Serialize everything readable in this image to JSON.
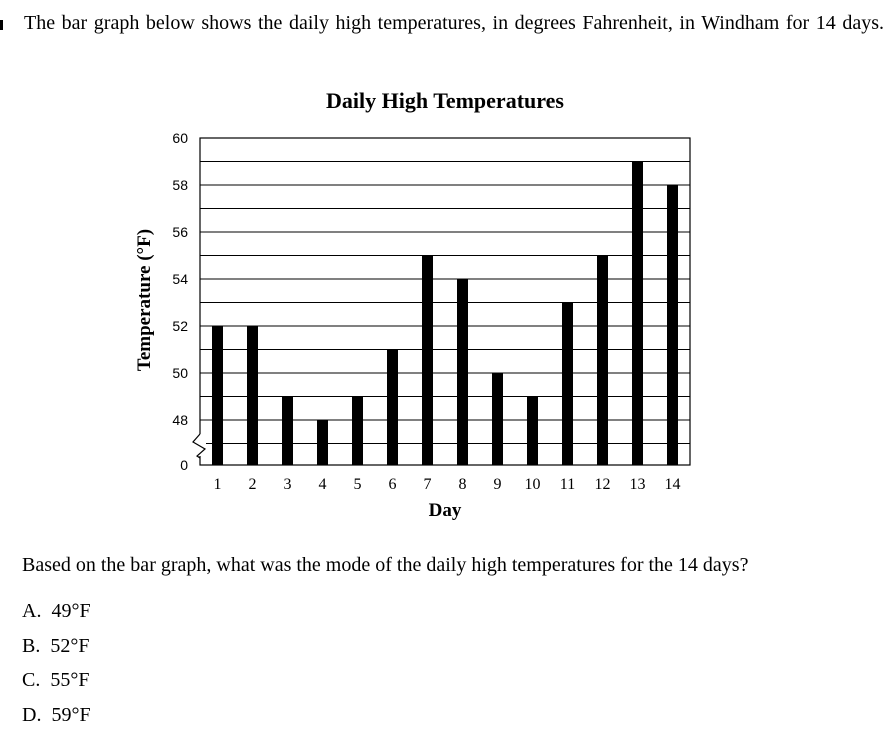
{
  "intro": "The bar graph below shows the daily high temperatures, in degrees Fahrenheit, in Windham for 14 days.",
  "chart_data": {
    "type": "bar",
    "title": "Daily High Temperatures",
    "xlabel": "Day",
    "ylabel": "Temperature (°F)",
    "categories": [
      "1",
      "2",
      "3",
      "4",
      "5",
      "6",
      "7",
      "8",
      "9",
      "10",
      "11",
      "12",
      "13",
      "14"
    ],
    "values": [
      52,
      52,
      49,
      48,
      49,
      51,
      55,
      54,
      50,
      49,
      53,
      55,
      59,
      58
    ],
    "ylim": [
      46,
      60
    ],
    "y_axis_break": true,
    "y_ticks": [
      "0",
      "48",
      "50",
      "52",
      "54",
      "56",
      "58",
      "60"
    ],
    "grid": true,
    "bar_color": "#000000"
  },
  "question": "Based on the bar graph, what was the mode of the daily high temperatures for the 14 days?",
  "choices": [
    {
      "letter": "A.",
      "text": "49°F"
    },
    {
      "letter": "B.",
      "text": "52°F"
    },
    {
      "letter": "C.",
      "text": "55°F"
    },
    {
      "letter": "D.",
      "text": "59°F"
    }
  ]
}
